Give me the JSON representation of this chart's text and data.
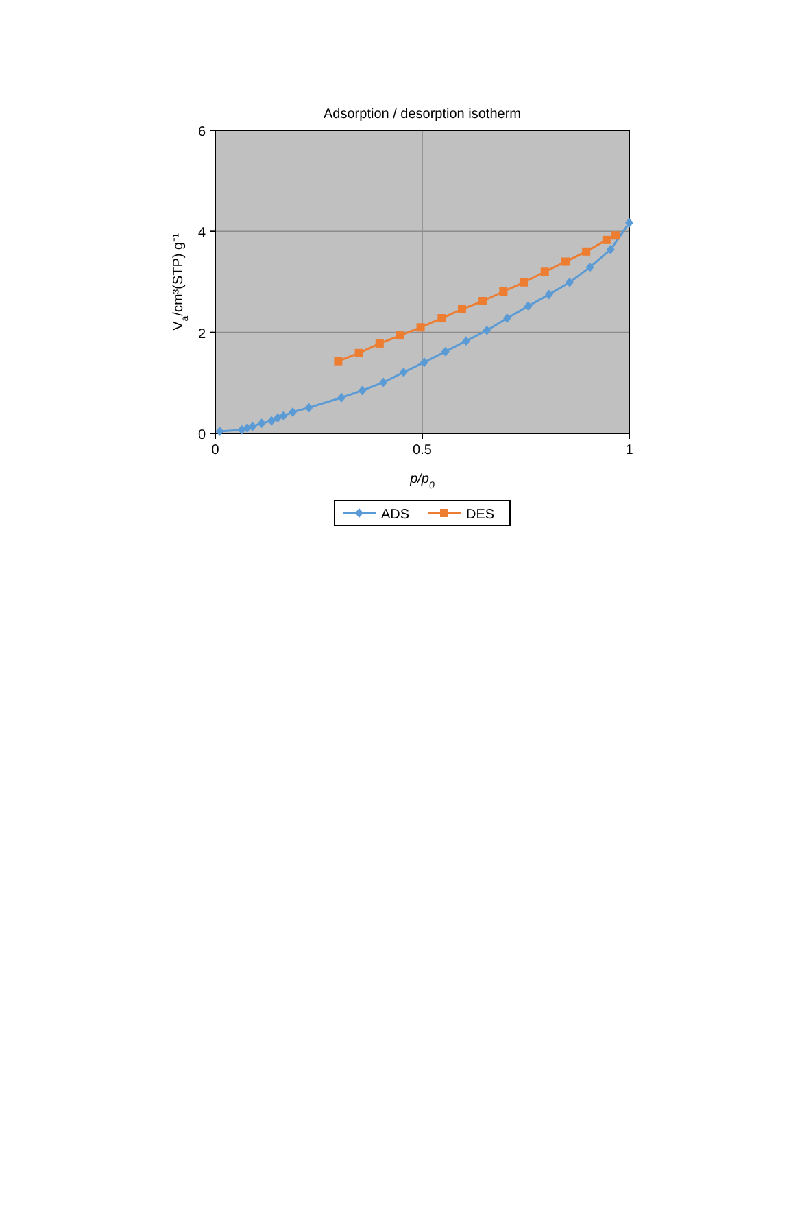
{
  "chart_data": {
    "type": "line",
    "title": "Adsorption / desorption isotherm",
    "xlabel": "p/p$_{0}$",
    "ylabel": "V$_{a}$/cm³(STP) g⁻¹",
    "xlim": [
      0,
      1
    ],
    "xticks": [
      0,
      0.5,
      1
    ],
    "ylim": [
      0,
      6
    ],
    "yticks": [
      0,
      2,
      4,
      6
    ],
    "grid": true,
    "legend": "bottom",
    "line_style": "solid",
    "series": [
      {
        "name": "ADS",
        "color": "#5b9bd5",
        "marker": "diamond",
        "x": [
          0.011,
          0.064,
          0.077,
          0.09,
          0.112,
          0.136,
          0.151,
          0.165,
          0.187,
          0.226,
          0.305,
          0.355,
          0.406,
          0.455,
          0.505,
          0.556,
          0.606,
          0.656,
          0.705,
          0.756,
          0.806,
          0.856,
          0.905,
          0.955,
          1.0
        ],
        "values": [
          0.04,
          0.07,
          0.11,
          0.14,
          0.2,
          0.25,
          0.31,
          0.35,
          0.42,
          0.51,
          0.71,
          0.85,
          1.01,
          1.21,
          1.41,
          1.62,
          1.83,
          2.04,
          2.28,
          2.52,
          2.75,
          2.99,
          3.29,
          3.64,
          4.17
        ]
      },
      {
        "name": "DES",
        "color": "#ed7d31",
        "marker": "square",
        "x": [
          0.297,
          0.347,
          0.397,
          0.447,
          0.496,
          0.547,
          0.596,
          0.646,
          0.696,
          0.746,
          0.796,
          0.846,
          0.896,
          0.945,
          0.967
        ],
        "values": [
          1.43,
          1.59,
          1.78,
          1.94,
          2.1,
          2.28,
          2.46,
          2.62,
          2.81,
          2.99,
          3.2,
          3.4,
          3.6,
          3.83,
          3.92
        ]
      }
    ]
  }
}
